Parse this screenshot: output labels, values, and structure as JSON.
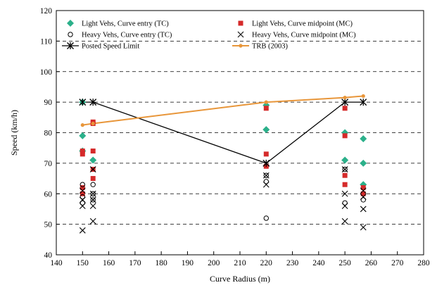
{
  "chart_data": {
    "type": "scatter",
    "title": "",
    "xlabel": "Curve Radius (m)",
    "ylabel": "Speed (km/h)",
    "xlim": [
      140,
      280
    ],
    "ylim": [
      40,
      120
    ],
    "x_ticks": [
      140,
      150,
      160,
      170,
      180,
      190,
      200,
      210,
      220,
      230,
      240,
      250,
      260,
      270,
      280
    ],
    "y_ticks": [
      40,
      50,
      60,
      70,
      80,
      90,
      100,
      110,
      120
    ],
    "grid": "horizontal dashed",
    "legend_position": "top",
    "series": [
      {
        "name": "Light Vehs, Curve entry (TC)",
        "marker": "diamond",
        "color": "#2bb08a",
        "points": [
          [
            150,
            90
          ],
          [
            150,
            79
          ],
          [
            150,
            74
          ],
          [
            154,
            71
          ],
          [
            220,
            81
          ],
          [
            220,
            89
          ],
          [
            250,
            80
          ],
          [
            250,
            71
          ],
          [
            257,
            78
          ],
          [
            257,
            70
          ],
          [
            257,
            63
          ]
        ]
      },
      {
        "name": "Light Vehs, Curve midpoint (MC)",
        "marker": "square",
        "color": "#d52a2a",
        "points": [
          [
            150,
            74
          ],
          [
            150,
            73
          ],
          [
            150,
            62
          ],
          [
            150,
            60
          ],
          [
            154,
            83.5
          ],
          [
            154,
            83
          ],
          [
            154,
            74
          ],
          [
            154,
            68
          ],
          [
            154,
            65
          ],
          [
            220,
            88
          ],
          [
            220,
            73
          ],
          [
            220,
            69
          ],
          [
            250,
            88
          ],
          [
            250,
            79
          ],
          [
            250,
            66
          ],
          [
            250,
            63
          ],
          [
            257,
            62
          ],
          [
            257,
            60
          ]
        ]
      },
      {
        "name": "Heavy Vehs, Curve entry (TC)",
        "marker": "circle",
        "color": "#000000",
        "points": [
          [
            150,
            63
          ],
          [
            150,
            59
          ],
          [
            150,
            57
          ],
          [
            154,
            63
          ],
          [
            154,
            60
          ],
          [
            154,
            58
          ],
          [
            220,
            66
          ],
          [
            220,
            64
          ],
          [
            220,
            52
          ],
          [
            250,
            68
          ],
          [
            250,
            57
          ],
          [
            257,
            58
          ]
        ]
      },
      {
        "name": "Heavy Vehs, Curve midpoint (MC)",
        "marker": "cross",
        "color": "#000000",
        "points": [
          [
            150,
            61
          ],
          [
            150,
            58
          ],
          [
            150,
            56
          ],
          [
            150,
            48
          ],
          [
            154,
            68
          ],
          [
            154,
            60
          ],
          [
            154,
            58
          ],
          [
            154,
            56
          ],
          [
            154,
            51
          ],
          [
            220,
            70
          ],
          [
            220,
            66
          ],
          [
            220,
            63
          ],
          [
            250,
            68
          ],
          [
            250,
            60
          ],
          [
            250,
            56
          ],
          [
            250,
            51
          ],
          [
            257,
            61
          ],
          [
            257,
            59
          ],
          [
            257,
            55
          ],
          [
            257,
            49
          ]
        ]
      },
      {
        "name": "Posted Speed Limit",
        "marker": "asterisk-line",
        "color": "#000000",
        "points": [
          [
            150,
            90
          ],
          [
            154,
            90
          ],
          [
            220,
            70
          ],
          [
            250,
            90
          ],
          [
            257,
            90
          ]
        ]
      },
      {
        "name": "TRB (2003)",
        "marker": "dot-line",
        "color": "#e8963a",
        "points": [
          [
            150,
            82.5
          ],
          [
            154,
            83
          ],
          [
            220,
            90
          ],
          [
            250,
            91.5
          ],
          [
            257,
            92
          ]
        ]
      }
    ]
  }
}
